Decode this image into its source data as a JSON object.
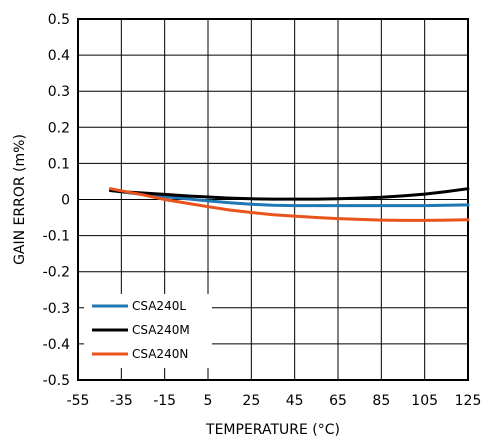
{
  "chart_data": {
    "type": "line",
    "xlabel": "TEMPERATURE (°C)",
    "ylabel": "GAIN ERROR (m%)",
    "xlim": [
      -55,
      125
    ],
    "ylim": [
      -0.5,
      0.5
    ],
    "xticks": [
      "-55",
      "-35",
      "-15",
      "5",
      "25",
      "45",
      "65",
      "85",
      "105",
      "125"
    ],
    "yticks": [
      "0.5",
      "0.4",
      "0.3",
      "0.2",
      "0.1",
      "0",
      "-0.1",
      "-0.2",
      "-0.3",
      "-0.4",
      "-0.5"
    ],
    "grid": true,
    "legend_position": "bottom-left",
    "series": [
      {
        "name": "CSA240L",
        "color": "#1f77b4",
        "x": [
          -40,
          -35,
          -25,
          -15,
          -5,
          5,
          15,
          25,
          35,
          45,
          55,
          65,
          75,
          85,
          95,
          105,
          115,
          125
        ],
        "y": [
          0.025,
          0.021,
          0.014,
          0.008,
          0.002,
          -0.004,
          -0.009,
          -0.013,
          -0.016,
          -0.017,
          -0.017,
          -0.017,
          -0.017,
          -0.017,
          -0.017,
          -0.017,
          -0.016,
          -0.015
        ]
      },
      {
        "name": "CSA240M",
        "color": "#000000",
        "x": [
          -40,
          -35,
          -25,
          -15,
          -5,
          5,
          15,
          25,
          35,
          45,
          55,
          65,
          75,
          85,
          95,
          105,
          115,
          125
        ],
        "y": [
          0.025,
          0.022,
          0.018,
          0.014,
          0.01,
          0.007,
          0.004,
          0.002,
          0.001,
          0.001,
          0.001,
          0.002,
          0.004,
          0.006,
          0.01,
          0.015,
          0.022,
          0.03
        ]
      },
      {
        "name": "CSA240N",
        "color": "#e8541c",
        "x": [
          -40,
          -35,
          -25,
          -15,
          -5,
          5,
          15,
          25,
          35,
          45,
          55,
          65,
          75,
          85,
          95,
          105,
          115,
          125
        ],
        "y": [
          0.03,
          0.024,
          0.013,
          0.0,
          -0.01,
          -0.02,
          -0.029,
          -0.036,
          -0.042,
          -0.046,
          -0.05,
          -0.053,
          -0.055,
          -0.057,
          -0.058,
          -0.058,
          -0.057,
          -0.056
        ]
      }
    ]
  }
}
